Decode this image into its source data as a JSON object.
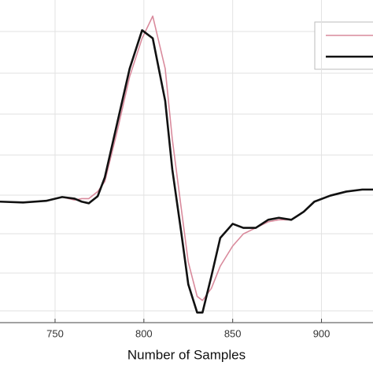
{
  "chart_data": {
    "type": "line",
    "x_label": "Number of Samples",
    "x": [
      719,
      732,
      745,
      754,
      761,
      765,
      769,
      774,
      778,
      785,
      792,
      799,
      805,
      812,
      816,
      821,
      825,
      830,
      833,
      838,
      843,
      850,
      856,
      863,
      870,
      876,
      883,
      890,
      896,
      905,
      914,
      923,
      929
    ],
    "series": [
      {
        "color": "#d98a9c",
        "values": [
          0,
          -0.004,
          0.004,
          0.023,
          0.008,
          0.015,
          0.015,
          0.05,
          0.1,
          0.35,
          0.62,
          0.81,
          0.92,
          0.66,
          0.31,
          -0.03,
          -0.3,
          -0.47,
          -0.49,
          -0.43,
          -0.32,
          -0.22,
          -0.16,
          -0.13,
          -0.1,
          -0.09,
          -0.09,
          -0.05,
          0,
          0.03,
          0.05,
          0.06,
          0.06
        ]
      },
      {
        "color": "#111111",
        "values": [
          0,
          -0.004,
          0.004,
          0.023,
          0.015,
          0,
          -0.008,
          0.027,
          0.12,
          0.39,
          0.66,
          0.85,
          0.81,
          0.5,
          0.16,
          -0.15,
          -0.41,
          -0.55,
          -0.55,
          -0.37,
          -0.18,
          -0.11,
          -0.13,
          -0.13,
          -0.09,
          -0.08,
          -0.09,
          -0.05,
          0,
          0.03,
          0.05,
          0.06,
          0.06
        ]
      }
    ],
    "xlim": [
      719,
      929
    ],
    "xticks": [
      750,
      800,
      850,
      900
    ],
    "ylim": [
      -0.6,
      1
    ],
    "grid": true
  }
}
